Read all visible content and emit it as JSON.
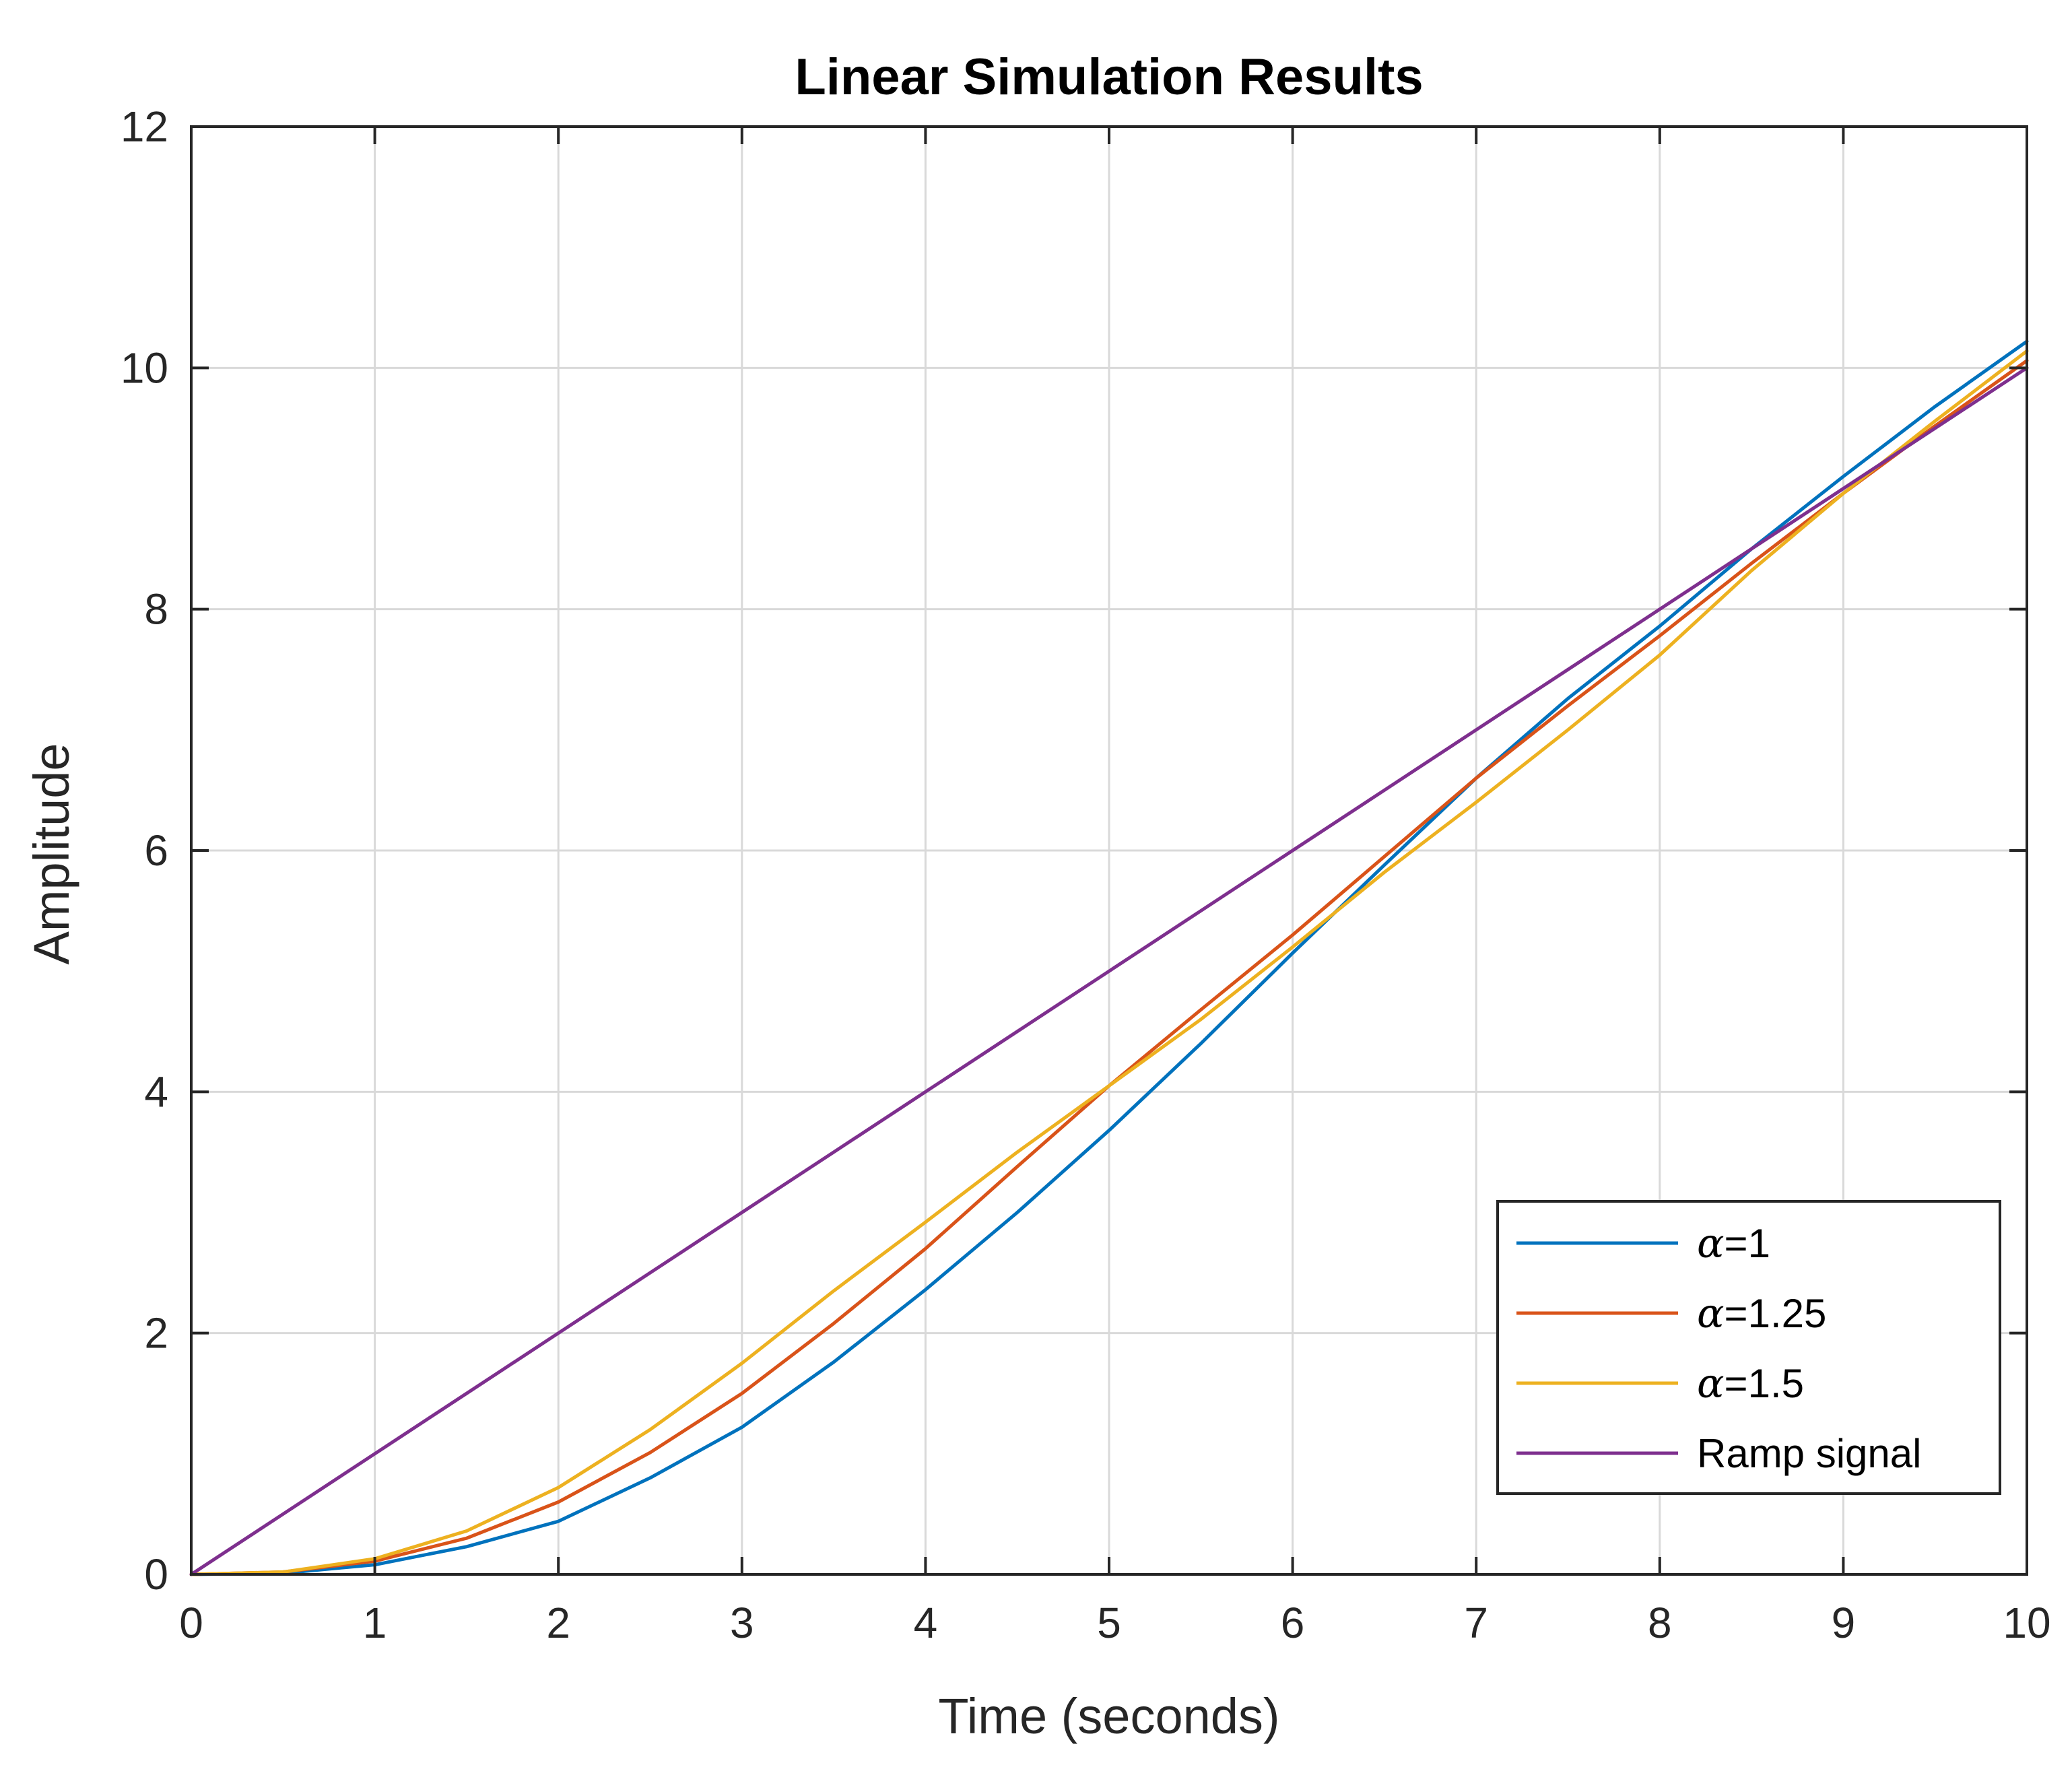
{
  "chart_data": {
    "type": "line",
    "title": "Linear Simulation Results",
    "xlabel": "Time (seconds)",
    "ylabel": "Amplitude",
    "xlim": [
      0,
      10
    ],
    "ylim": [
      0,
      12
    ],
    "xticks": [
      0,
      1,
      2,
      3,
      4,
      5,
      6,
      7,
      8,
      9,
      10
    ],
    "yticks": [
      0,
      2,
      4,
      6,
      8,
      10,
      12
    ],
    "xtick_labels": [
      "0",
      "1",
      "2",
      "3",
      "4",
      "5",
      "6",
      "7",
      "8",
      "9",
      "10"
    ],
    "ytick_labels": [
      "0",
      "2",
      "4",
      "6",
      "8",
      "10",
      "12"
    ],
    "grid": true,
    "legend_position": "bottom-right",
    "x": [
      0,
      0.5,
      1,
      1.5,
      2,
      2.5,
      3,
      3.5,
      4,
      4.5,
      5,
      5.5,
      6,
      6.5,
      7,
      7.5,
      8,
      8.5,
      9,
      9.5,
      10
    ],
    "series": [
      {
        "name": "α=1",
        "legend_symbol": "α",
        "legend_value": "=1",
        "color": "#0072BD",
        "values": [
          0,
          0.01,
          0.08,
          0.23,
          0.44,
          0.8,
          1.22,
          1.76,
          2.36,
          3.0,
          3.68,
          4.4,
          5.15,
          5.88,
          6.6,
          7.26,
          7.86,
          8.5,
          9.1,
          9.68,
          10.22
        ]
      },
      {
        "name": "α=1.25",
        "legend_symbol": "α",
        "legend_value": "=1.25",
        "color": "#D95319",
        "values": [
          0,
          0.02,
          0.11,
          0.3,
          0.6,
          1.01,
          1.5,
          2.08,
          2.7,
          3.38,
          4.05,
          4.68,
          5.3,
          5.95,
          6.6,
          7.2,
          7.78,
          8.38,
          8.96,
          9.52,
          10.06
        ]
      },
      {
        "name": "α=1.5",
        "legend_symbol": "α",
        "legend_value": "=1.5",
        "color": "#EDB120",
        "values": [
          0,
          0.02,
          0.13,
          0.36,
          0.72,
          1.2,
          1.75,
          2.35,
          2.92,
          3.5,
          4.05,
          4.6,
          5.2,
          5.82,
          6.4,
          7.0,
          7.62,
          8.32,
          8.96,
          9.56,
          10.14
        ]
      },
      {
        "name": "Ramp signal",
        "legend_symbol": "",
        "legend_value": "Ramp signal",
        "color": "#7E2F8E",
        "values": [
          0,
          0.5,
          1,
          1.5,
          2,
          2.5,
          3,
          3.5,
          4,
          4.5,
          5,
          5.5,
          6,
          6.5,
          7,
          7.5,
          8,
          8.5,
          9,
          9.5,
          10
        ]
      }
    ]
  }
}
